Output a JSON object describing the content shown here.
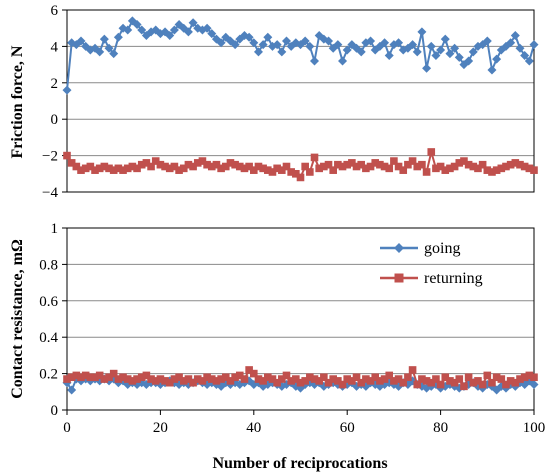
{
  "chart_data": [
    {
      "panel": "friction",
      "type": "line",
      "ylabel": "Friction force, N",
      "xlim": [
        0,
        100
      ],
      "ylim": [
        -4,
        6
      ],
      "yticks": [
        -4,
        -2,
        0,
        2,
        4,
        6
      ],
      "ytick_labels": [
        "−4",
        "−2",
        "0",
        "2",
        "4",
        "6"
      ],
      "grid": true,
      "series": [
        {
          "color": "#4F81BD",
          "marker": "diamond",
          "x": [
            0,
            1,
            2,
            3,
            4,
            5,
            6,
            7,
            8,
            9,
            10,
            11,
            12,
            13,
            14,
            15,
            16,
            17,
            18,
            19,
            20,
            21,
            22,
            23,
            24,
            25,
            26,
            27,
            28,
            29,
            30,
            31,
            32,
            33,
            34,
            35,
            36,
            37,
            38,
            39,
            40,
            41,
            42,
            43,
            44,
            45,
            46,
            47,
            48,
            49,
            50,
            51,
            52,
            53,
            54,
            55,
            56,
            57,
            58,
            59,
            60,
            61,
            62,
            63,
            64,
            65,
            66,
            67,
            68,
            69,
            70,
            71,
            72,
            73,
            74,
            75,
            76,
            77,
            78,
            79,
            80,
            81,
            82,
            83,
            84,
            85,
            86,
            87,
            88,
            89,
            90,
            91,
            92,
            93,
            94,
            95,
            96,
            97,
            98,
            99,
            100
          ],
          "values": [
            1.6,
            4.2,
            4.1,
            4.3,
            4.0,
            3.8,
            3.9,
            3.7,
            4.4,
            3.9,
            3.6,
            4.5,
            5.0,
            4.9,
            5.4,
            5.2,
            4.9,
            4.6,
            4.8,
            4.9,
            4.7,
            4.8,
            4.6,
            4.9,
            5.2,
            5.0,
            4.8,
            5.3,
            5.0,
            4.9,
            5.0,
            4.7,
            4.4,
            4.2,
            4.5,
            4.3,
            4.1,
            4.4,
            4.6,
            4.5,
            4.2,
            3.7,
            4.1,
            4.5,
            4.0,
            4.1,
            3.7,
            4.3,
            4.0,
            4.2,
            4.1,
            4.3,
            4.0,
            3.2,
            4.6,
            4.4,
            4.3,
            3.9,
            4.1,
            3.2,
            3.8,
            4.1,
            3.9,
            3.7,
            4.2,
            4.3,
            3.8,
            4.0,
            4.2,
            3.5,
            4.1,
            4.2,
            3.8,
            3.9,
            4.1,
            3.7,
            4.8,
            2.8,
            4.0,
            3.5,
            3.8,
            4.4,
            3.6,
            3.9,
            3.4,
            3.0,
            3.2,
            3.7,
            4.0,
            4.1,
            4.3,
            2.7,
            3.3,
            3.8,
            4.0,
            4.2,
            4.6,
            3.9,
            3.5,
            3.2,
            4.1
          ]
        },
        {
          "color": "#C0504D",
          "marker": "square",
          "x": [
            0,
            1,
            2,
            3,
            4,
            5,
            6,
            7,
            8,
            9,
            10,
            11,
            12,
            13,
            14,
            15,
            16,
            17,
            18,
            19,
            20,
            21,
            22,
            23,
            24,
            25,
            26,
            27,
            28,
            29,
            30,
            31,
            32,
            33,
            34,
            35,
            36,
            37,
            38,
            39,
            40,
            41,
            42,
            43,
            44,
            45,
            46,
            47,
            48,
            49,
            50,
            51,
            52,
            53,
            54,
            55,
            56,
            57,
            58,
            59,
            60,
            61,
            62,
            63,
            64,
            65,
            66,
            67,
            68,
            69,
            70,
            71,
            72,
            73,
            74,
            75,
            76,
            77,
            78,
            79,
            80,
            81,
            82,
            83,
            84,
            85,
            86,
            87,
            88,
            89,
            90,
            91,
            92,
            93,
            94,
            95,
            96,
            97,
            98,
            99,
            100
          ],
          "values": [
            -2.0,
            -2.4,
            -2.6,
            -2.8,
            -2.7,
            -2.6,
            -2.8,
            -2.7,
            -2.6,
            -2.7,
            -2.8,
            -2.7,
            -2.8,
            -2.7,
            -2.6,
            -2.7,
            -2.5,
            -2.4,
            -2.6,
            -2.3,
            -2.5,
            -2.6,
            -2.7,
            -2.6,
            -2.8,
            -2.7,
            -2.5,
            -2.6,
            -2.4,
            -2.3,
            -2.5,
            -2.6,
            -2.5,
            -2.7,
            -2.6,
            -2.4,
            -2.5,
            -2.6,
            -2.7,
            -2.6,
            -2.8,
            -2.6,
            -2.7,
            -2.8,
            -2.9,
            -2.7,
            -2.8,
            -2.6,
            -2.9,
            -3.0,
            -3.2,
            -2.6,
            -2.9,
            -2.1,
            -2.7,
            -2.6,
            -2.5,
            -2.8,
            -2.5,
            -2.6,
            -2.5,
            -2.4,
            -2.6,
            -2.5,
            -2.7,
            -2.6,
            -2.4,
            -2.5,
            -2.6,
            -2.7,
            -2.3,
            -2.6,
            -2.8,
            -2.5,
            -2.3,
            -2.6,
            -2.5,
            -2.9,
            -1.8,
            -2.7,
            -2.6,
            -2.8,
            -2.7,
            -2.6,
            -2.4,
            -2.3,
            -2.5,
            -2.6,
            -2.7,
            -2.5,
            -2.8,
            -2.9,
            -2.8,
            -2.7,
            -2.6,
            -2.5,
            -2.4,
            -2.5,
            -2.6,
            -2.7,
            -2.8
          ]
        }
      ]
    },
    {
      "panel": "contact",
      "type": "line",
      "xlabel": "Number of reciprocations",
      "ylabel": "Contact resistance, mΩ",
      "xlim": [
        0,
        100
      ],
      "xticks": [
        0,
        20,
        40,
        60,
        80,
        100
      ],
      "ylim": [
        0,
        1
      ],
      "yticks": [
        0,
        0.2,
        0.4,
        0.6,
        0.8,
        1
      ],
      "ytick_labels": [
        "0",
        "0.2",
        "0.4",
        "0.6",
        "0.8",
        "1"
      ],
      "grid": true,
      "legend_position": "top-right",
      "series": [
        {
          "name": "going",
          "color": "#4F81BD",
          "marker": "diamond",
          "x": [
            0,
            1,
            2,
            3,
            4,
            5,
            6,
            7,
            8,
            9,
            10,
            11,
            12,
            13,
            14,
            15,
            16,
            17,
            18,
            19,
            20,
            21,
            22,
            23,
            24,
            25,
            26,
            27,
            28,
            29,
            30,
            31,
            32,
            33,
            34,
            35,
            36,
            37,
            38,
            39,
            40,
            41,
            42,
            43,
            44,
            45,
            46,
            47,
            48,
            49,
            50,
            51,
            52,
            53,
            54,
            55,
            56,
            57,
            58,
            59,
            60,
            61,
            62,
            63,
            64,
            65,
            66,
            67,
            68,
            69,
            70,
            71,
            72,
            73,
            74,
            75,
            76,
            77,
            78,
            79,
            80,
            81,
            82,
            83,
            84,
            85,
            86,
            87,
            88,
            89,
            90,
            91,
            92,
            93,
            94,
            95,
            96,
            97,
            98,
            99,
            100
          ],
          "values": [
            0.15,
            0.11,
            0.17,
            0.16,
            0.17,
            0.16,
            0.17,
            0.16,
            0.17,
            0.16,
            0.17,
            0.15,
            0.16,
            0.14,
            0.15,
            0.14,
            0.15,
            0.14,
            0.15,
            0.15,
            0.14,
            0.15,
            0.16,
            0.15,
            0.14,
            0.15,
            0.14,
            0.15,
            0.16,
            0.15,
            0.14,
            0.15,
            0.14,
            0.13,
            0.15,
            0.14,
            0.15,
            0.14,
            0.15,
            0.16,
            0.14,
            0.15,
            0.13,
            0.14,
            0.15,
            0.14,
            0.13,
            0.14,
            0.15,
            0.13,
            0.12,
            0.14,
            0.15,
            0.14,
            0.15,
            0.13,
            0.14,
            0.15,
            0.14,
            0.13,
            0.14,
            0.15,
            0.13,
            0.14,
            0.13,
            0.15,
            0.14,
            0.13,
            0.14,
            0.15,
            0.14,
            0.13,
            0.15,
            0.14,
            0.16,
            0.14,
            0.13,
            0.12,
            0.13,
            0.14,
            0.12,
            0.13,
            0.14,
            0.13,
            0.12,
            0.13,
            0.14,
            0.15,
            0.13,
            0.12,
            0.14,
            0.13,
            0.11,
            0.13,
            0.12,
            0.14,
            0.13,
            0.15,
            0.14,
            0.16,
            0.14
          ]
        },
        {
          "name": "returning",
          "color": "#C0504D",
          "marker": "square",
          "x": [
            0,
            1,
            2,
            3,
            4,
            5,
            6,
            7,
            8,
            9,
            10,
            11,
            12,
            13,
            14,
            15,
            16,
            17,
            18,
            19,
            20,
            21,
            22,
            23,
            24,
            25,
            26,
            27,
            28,
            29,
            30,
            31,
            32,
            33,
            34,
            35,
            36,
            37,
            38,
            39,
            40,
            41,
            42,
            43,
            44,
            45,
            46,
            47,
            48,
            49,
            50,
            51,
            52,
            53,
            54,
            55,
            56,
            57,
            58,
            59,
            60,
            61,
            62,
            63,
            64,
            65,
            66,
            67,
            68,
            69,
            70,
            71,
            72,
            73,
            74,
            75,
            76,
            77,
            78,
            79,
            80,
            81,
            82,
            83,
            84,
            85,
            86,
            87,
            88,
            89,
            90,
            91,
            92,
            93,
            94,
            95,
            96,
            97,
            98,
            99,
            100
          ],
          "values": [
            0.17,
            0.18,
            0.19,
            0.18,
            0.19,
            0.18,
            0.18,
            0.19,
            0.17,
            0.18,
            0.2,
            0.17,
            0.18,
            0.17,
            0.16,
            0.17,
            0.18,
            0.19,
            0.17,
            0.16,
            0.17,
            0.16,
            0.15,
            0.17,
            0.18,
            0.16,
            0.17,
            0.15,
            0.17,
            0.16,
            0.18,
            0.17,
            0.16,
            0.17,
            0.18,
            0.16,
            0.18,
            0.19,
            0.17,
            0.22,
            0.2,
            0.17,
            0.16,
            0.18,
            0.17,
            0.15,
            0.17,
            0.19,
            0.16,
            0.17,
            0.15,
            0.16,
            0.18,
            0.17,
            0.16,
            0.18,
            0.15,
            0.17,
            0.16,
            0.14,
            0.17,
            0.16,
            0.18,
            0.15,
            0.17,
            0.16,
            0.18,
            0.16,
            0.17,
            0.19,
            0.16,
            0.17,
            0.15,
            0.18,
            0.22,
            0.14,
            0.17,
            0.16,
            0.15,
            0.17,
            0.14,
            0.18,
            0.16,
            0.15,
            0.17,
            0.13,
            0.18,
            0.15,
            0.16,
            0.14,
            0.19,
            0.15,
            0.18,
            0.17,
            0.14,
            0.16,
            0.15,
            0.17,
            0.18,
            0.19,
            0.18
          ]
        }
      ]
    }
  ]
}
